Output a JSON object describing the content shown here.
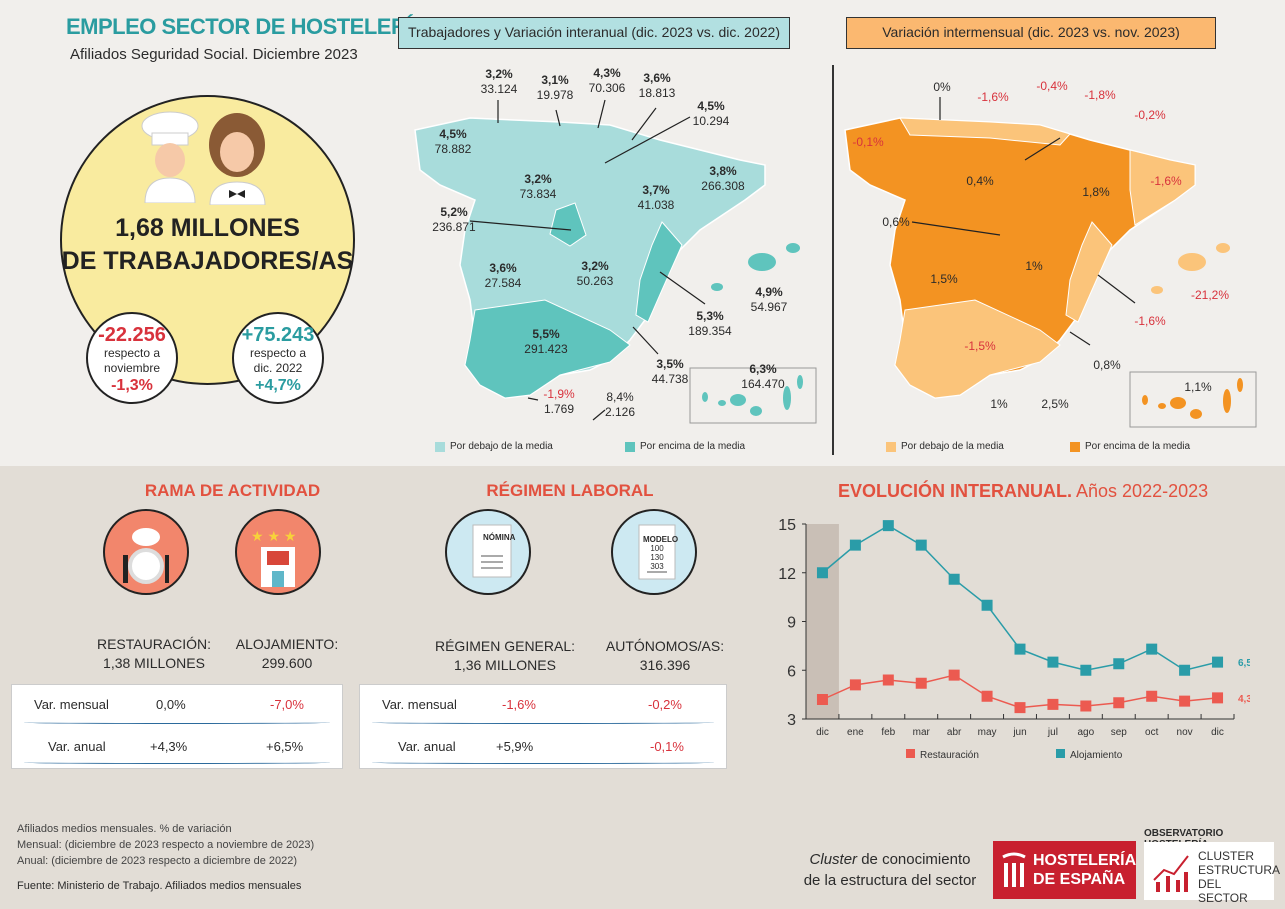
{
  "header": {
    "title": "EMPLEO SECTOR DE HOSTELERÍA",
    "subtitle": "Afiliados Seguridad Social. Diciembre 2023"
  },
  "hero": {
    "line1": "1,68 MILLONES",
    "line2": "DE TRABAJADORES/AS",
    "monthly": {
      "value": "-22.256",
      "text1": "respecto a",
      "text2": "noviembre",
      "pct": "-1,3%"
    },
    "annual": {
      "value": "+75.243",
      "text1": "respecto a",
      "text2": "dic. 2022",
      "pct": "+4,7%"
    }
  },
  "map_left": {
    "title": "Trabajadores y Variación interanual (dic. 2023 vs. dic. 2022)",
    "labels": [
      {
        "pct": "3,2%",
        "n": "33.124"
      },
      {
        "pct": "3,1%",
        "n": "19.978"
      },
      {
        "pct": "4,3%",
        "n": "70.306"
      },
      {
        "pct": "3,6%",
        "n": "18.813"
      },
      {
        "pct": "4,5%",
        "n": "10.294"
      },
      {
        "pct": "4,5%",
        "n": "78.882"
      },
      {
        "pct": "3,2%",
        "n": "73.834"
      },
      {
        "pct": "3,7%",
        "n": "41.038"
      },
      {
        "pct": "3,8%",
        "n": "266.308"
      },
      {
        "pct": "5,2%",
        "n": "236.871"
      },
      {
        "pct": "3,6%",
        "n": "27.584"
      },
      {
        "pct": "3,2%",
        "n": "50.263"
      },
      {
        "pct": "5,3%",
        "n": "189.354"
      },
      {
        "pct": "4,9%",
        "n": "54.967"
      },
      {
        "pct": "5,5%",
        "n": "291.423"
      },
      {
        "pct": "3,5%",
        "n": "44.738"
      },
      {
        "pct": "6,3%",
        "n": "164.470"
      },
      {
        "pct": "-1,9%",
        "n": "1.769"
      },
      {
        "pct": "8,4%",
        "n": "2.126"
      }
    ],
    "legend_below": "Por debajo de la media",
    "legend_above": "Por encima de la media",
    "colors": {
      "below": "#a8dcdb",
      "above": "#5fc4bd"
    }
  },
  "map_right": {
    "title": "Variación intermensual (dic. 2023 vs. nov. 2023)",
    "labels": [
      "0%",
      "-1,6%",
      "-0,4%",
      "-1,8%",
      "-0,2%",
      "-0,1%",
      "0,4%",
      "1,8%",
      "-1,6%",
      "0,6%",
      "1,5%",
      "1%",
      "-1,6%",
      "-21,2%",
      "-1,5%",
      "0,8%",
      "1,1%",
      "1%",
      "2,5%"
    ],
    "legend_below": "Por debajo de la media",
    "legend_above": "Por encima de la media",
    "colors": {
      "below": "#fbc47a",
      "above": "#f39322"
    }
  },
  "rama": {
    "title": "RAMA DE ACTIVIDAD",
    "restauracion": {
      "label": "RESTAURACIÓN:",
      "value": "1,38 MILLONES"
    },
    "alojamiento": {
      "label": "ALOJAMIENTO:",
      "value": "299.600"
    },
    "rows": [
      {
        "label": "Var. mensual",
        "a": "0,0%",
        "b": "-7,0%"
      },
      {
        "label": "Var. anual",
        "a": "+4,3%",
        "b": "+6,5%"
      }
    ]
  },
  "regimen": {
    "title": "RÉGIMEN LABORAL",
    "doc1": "NÓMINA",
    "doc2": "MODELO",
    "doc2_lines": [
      "100",
      "130",
      "303"
    ],
    "general": {
      "label": "RÉGIMEN GENERAL:",
      "value": "1,36 MILLONES"
    },
    "autonomos": {
      "label": "AUTÓNOMOS/AS:",
      "value": "316.396"
    },
    "rows": [
      {
        "label": "Var. mensual",
        "a": "-1,6%",
        "b": "-0,2%"
      },
      {
        "label": "Var. anual",
        "a": "+5,9%",
        "b": "-0,1%"
      }
    ]
  },
  "evolucion": {
    "title": "EVOLUCIÓN INTERANUAL.",
    "title_years": "Años 2022-2023"
  },
  "chart_data": {
    "type": "line",
    "categories": [
      "dic",
      "ene",
      "feb",
      "mar",
      "abr",
      "may",
      "jun",
      "jul",
      "ago",
      "sep",
      "oct",
      "nov",
      "dic"
    ],
    "series": [
      {
        "name": "Restauración",
        "color": "#ec5a50",
        "values": [
          4.2,
          5.1,
          5.4,
          5.2,
          5.7,
          4.4,
          3.7,
          3.9,
          3.8,
          4.0,
          4.4,
          4.1,
          4.3
        ],
        "end_label": "4,3"
      },
      {
        "name": "Alojamiento",
        "color": "#2a9ca8",
        "values": [
          12.0,
          13.7,
          14.9,
          13.7,
          11.6,
          10.0,
          7.3,
          6.5,
          6.0,
          6.4,
          7.3,
          6.0,
          6.5
        ],
        "end_label": "6,5"
      }
    ],
    "yticks": [
      "15",
      "12",
      "9",
      "6",
      "3"
    ],
    "ylim": [
      3,
      15
    ],
    "legend": "bottom",
    "highlight_first_category": true
  },
  "footer": {
    "notes": [
      "Afiliados medios mensuales. % de variación",
      "Mensual: (diciembre de 2023 respecto a noviembre de 2023)",
      "Anual: (diciembre de 2023 respecto a diciembre de 2022)"
    ],
    "source": "Fuente: Ministerio de Trabajo. Afiliados medios mensuales",
    "cluster_em": "Cluster",
    "cluster_rest": " de conocimiento",
    "cluster_line2": "de la estructura del sector",
    "logo1": [
      "HOSTELERÍA",
      "DE ESPAÑA"
    ],
    "observatorio": "OBSERVATORIO HOSTELERÍA",
    "logo2": [
      "CLUSTER",
      "ESTRUCTURA",
      "DEL SECTOR"
    ]
  }
}
